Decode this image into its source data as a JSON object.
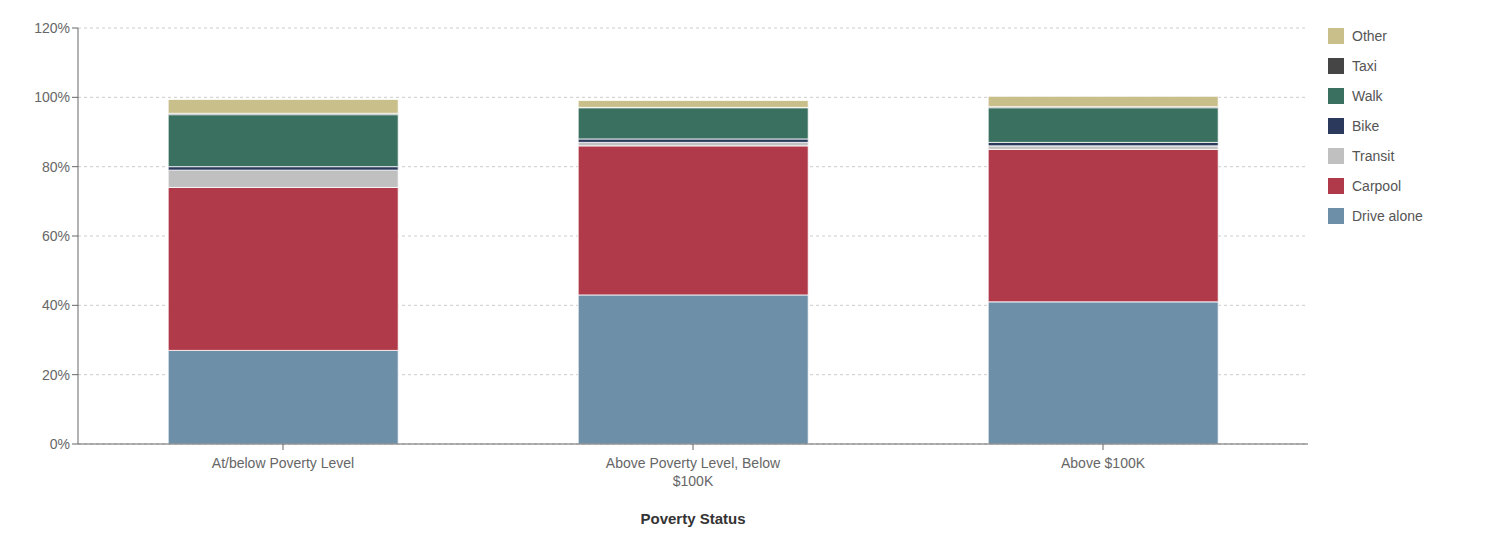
{
  "chart_data": {
    "type": "bar",
    "stacked": true,
    "xlabel": "Poverty Status",
    "categories": [
      "At/below Poverty Level",
      "Above Poverty Level, Below\n$100K",
      "Above $100K"
    ],
    "series": [
      {
        "name": "Drive alone",
        "color": "#6d8fa8",
        "values": [
          27,
          43,
          41
        ]
      },
      {
        "name": "Carpool",
        "color": "#b03a4a",
        "values": [
          47,
          43,
          44
        ]
      },
      {
        "name": "Transit",
        "color": "#c0c0c0",
        "values": [
          5,
          1,
          1
        ]
      },
      {
        "name": "Bike",
        "color": "#2b3a5c",
        "values": [
          1,
          1,
          1
        ]
      },
      {
        "name": "Walk",
        "color": "#3a7060",
        "values": [
          15,
          9,
          10
        ]
      },
      {
        "name": "Taxi",
        "color": "#454545",
        "values": [
          0.4,
          0.1,
          0.3
        ]
      },
      {
        "name": "Other",
        "color": "#c8bf8a",
        "values": [
          4,
          2,
          3
        ]
      }
    ],
    "ylim": [
      0,
      120
    ],
    "yticks": [
      {
        "value": 0,
        "label": "0%"
      },
      {
        "value": 20,
        "label": "20%"
      },
      {
        "value": 40,
        "label": "40%"
      },
      {
        "value": 60,
        "label": "60%"
      },
      {
        "value": 80,
        "label": "80%"
      },
      {
        "value": 100,
        "label": "100%"
      },
      {
        "value": 120,
        "label": "120%"
      }
    ],
    "grid": true,
    "legend": "right"
  }
}
